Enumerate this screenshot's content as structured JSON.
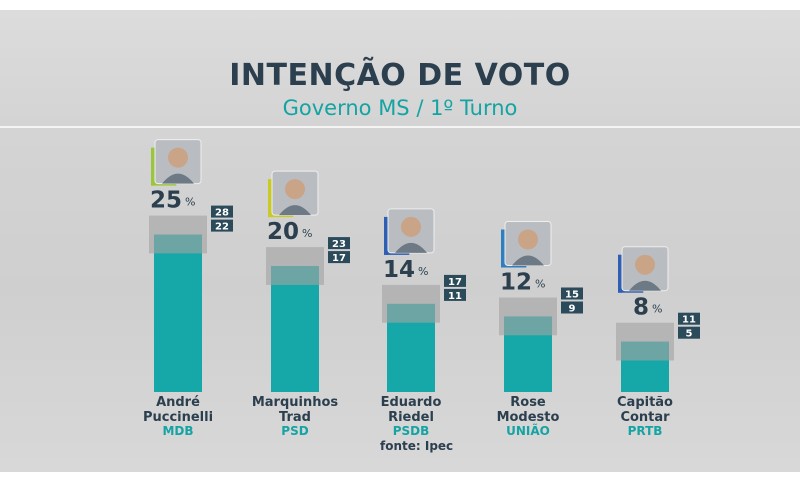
{
  "header": {
    "title": "INTENÇÃO DE VOTO",
    "subtitle": "Governo MS / 1º Turno"
  },
  "source": "fonte: Ipec",
  "colors": {
    "bar": "#16a8a8",
    "interval": "#a3a3a3",
    "range_box": "#2b4a5a",
    "title": "#2b3f4e",
    "accent": "#15a3a3"
  },
  "chart_data": {
    "type": "bar",
    "title": "INTENÇÃO DE VOTO",
    "subtitle": "Governo MS / 1º Turno",
    "unit": "%",
    "ylim": [
      0,
      30
    ],
    "candidates": [
      {
        "name_lines": [
          "André",
          "Puccinelli"
        ],
        "party": "MDB",
        "value": 25,
        "upper": 28,
        "lower": 22,
        "photo_accent": "#9bc53d"
      },
      {
        "name_lines": [
          "Marquinhos",
          "Trad"
        ],
        "party": "PSD",
        "value": 20,
        "upper": 23,
        "lower": 17,
        "photo_accent": "#c9c92a"
      },
      {
        "name_lines": [
          "Eduardo",
          "Riedel"
        ],
        "party": "PSDB",
        "value": 14,
        "upper": 17,
        "lower": 11,
        "photo_accent": "#2f5fb3"
      },
      {
        "name_lines": [
          "Rose",
          "Modesto"
        ],
        "party": "UNIÃO",
        "value": 12,
        "upper": 15,
        "lower": 9,
        "photo_accent": "#2f7fc0"
      },
      {
        "name_lines": [
          "Capitão",
          "Contar"
        ],
        "party": "PRTB",
        "value": 8,
        "upper": 11,
        "lower": 5,
        "photo_accent": "#2f5fb3"
      }
    ]
  }
}
